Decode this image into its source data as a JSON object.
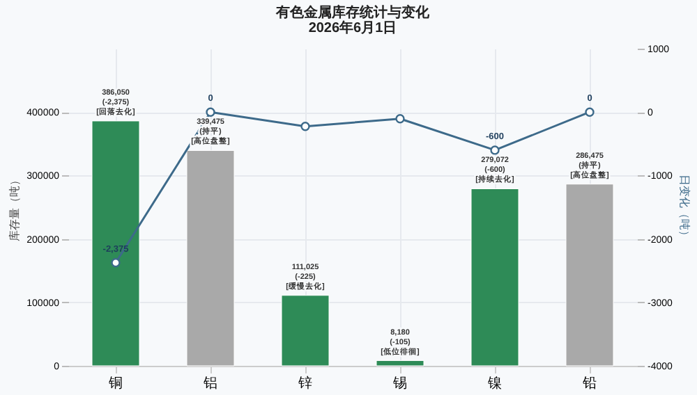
{
  "chart_data": {
    "type": "bar",
    "title": "有色金属库存统计与变化",
    "subtitle": "2026年6月1日",
    "ylabel": "库存量（吨）",
    "y2label": "日变化（吨）",
    "categories": [
      "铜",
      "铝",
      "锌",
      "锡",
      "镍",
      "铅"
    ],
    "series": [
      {
        "colors": [
          "#2e8b57",
          "#a9a9a9",
          "#2e8b57",
          "#2e8b57",
          "#2e8b57",
          "#a9a9a9"
        ],
        "values": [
          386050,
          339475,
          111025,
          8180,
          279072,
          286475
        ],
        "value_labels": [
          "386,050\n(-2,375)\n[回落去化]",
          "339,475\n(持平)\n[高位盘整]",
          "111,025\n(-225)\n[缓慢去化]",
          "8,180\n(-105)\n[低位徘徊]",
          "279,072\n(-600)\n[持续去化]",
          "286,475\n(持平)\n[高位盘整]"
        ]
      },
      {
        "type": "line",
        "axis": "y2",
        "color": "#3d6a8a",
        "values": [
          -2375,
          0,
          -225,
          -105,
          -600,
          0
        ],
        "value_labels": [
          "-2,375",
          "0",
          null,
          null,
          "-600",
          "0"
        ]
      }
    ],
    "ylim": [
      0,
      500000
    ],
    "yticks": [
      0,
      100000,
      200000,
      300000,
      400000
    ],
    "y2lim": [
      -4000,
      1000
    ],
    "y2ticks": [
      -4000,
      -3000,
      -2000,
      -1000,
      0,
      1000
    ],
    "grid": true,
    "marker": "circle",
    "line_style": "solid"
  }
}
